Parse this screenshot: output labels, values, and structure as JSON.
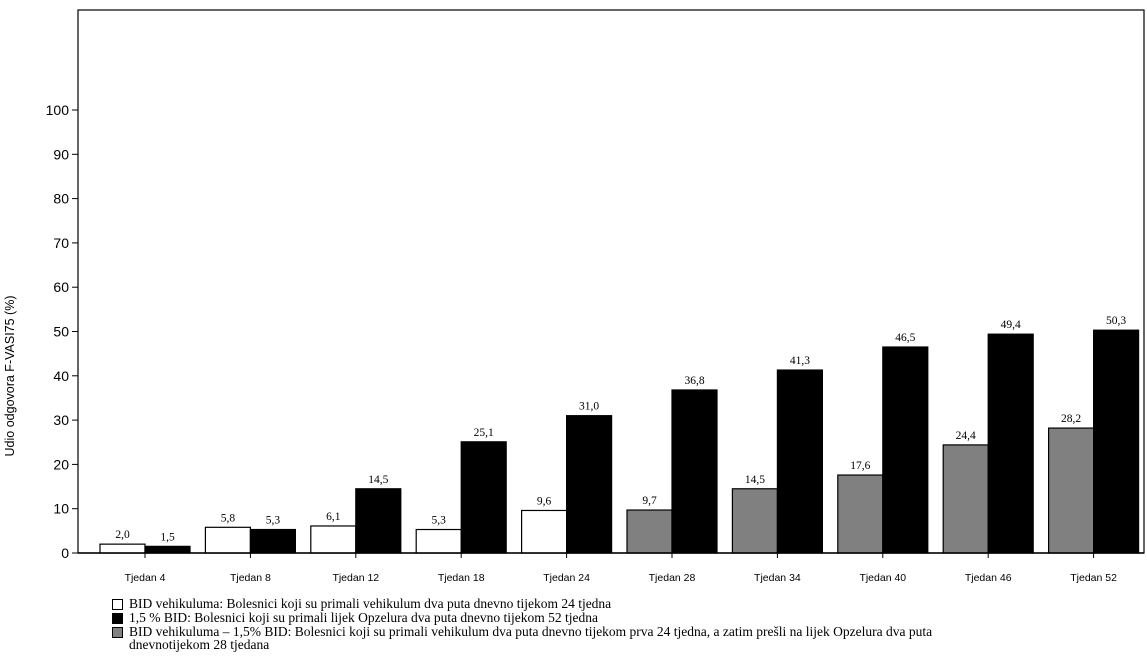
{
  "chart_data": {
    "type": "bar",
    "ylabel": "Udio odgovora F-VASI75 (%)",
    "xlabel": "",
    "ylim": [
      0,
      100
    ],
    "yticks": [
      0,
      10,
      20,
      30,
      40,
      50,
      60,
      70,
      80,
      90,
      100
    ],
    "grid": false,
    "legend_position": "bottom",
    "groups": [
      {
        "label": "Tjedan 4",
        "bars": [
          {
            "series": 0,
            "value": 2.0,
            "value_label": "2,0"
          },
          {
            "series": 1,
            "value": 1.5,
            "value_label": "1,5"
          }
        ]
      },
      {
        "label": "Tjedan 8",
        "bars": [
          {
            "series": 0,
            "value": 5.8,
            "value_label": "5,8"
          },
          {
            "series": 1,
            "value": 5.3,
            "value_label": "5,3"
          }
        ]
      },
      {
        "label": "Tjedan 12",
        "bars": [
          {
            "series": 0,
            "value": 6.1,
            "value_label": "6,1"
          },
          {
            "series": 1,
            "value": 14.5,
            "value_label": "14,5"
          }
        ]
      },
      {
        "label": "Tjedan 18",
        "bars": [
          {
            "series": 0,
            "value": 5.3,
            "value_label": "5,3"
          },
          {
            "series": 1,
            "value": 25.1,
            "value_label": "25,1"
          }
        ]
      },
      {
        "label": "Tjedan 24",
        "bars": [
          {
            "series": 0,
            "value": 9.6,
            "value_label": "9,6"
          },
          {
            "series": 1,
            "value": 31.0,
            "value_label": "31,0"
          }
        ]
      },
      {
        "label": "Tjedan 28",
        "bars": [
          {
            "series": 2,
            "value": 9.7,
            "value_label": "9,7"
          },
          {
            "series": 1,
            "value": 36.8,
            "value_label": "36,8"
          }
        ]
      },
      {
        "label": "Tjedan 34",
        "bars": [
          {
            "series": 2,
            "value": 14.5,
            "value_label": "14,5"
          },
          {
            "series": 1,
            "value": 41.3,
            "value_label": "41,3"
          }
        ]
      },
      {
        "label": "Tjedan 40",
        "bars": [
          {
            "series": 2,
            "value": 17.6,
            "value_label": "17,6"
          },
          {
            "series": 1,
            "value": 46.5,
            "value_label": "46,5"
          }
        ]
      },
      {
        "label": "Tjedan 46",
        "bars": [
          {
            "series": 2,
            "value": 24.4,
            "value_label": "24,4"
          },
          {
            "series": 1,
            "value": 49.4,
            "value_label": "49,4"
          }
        ]
      },
      {
        "label": "Tjedan 52",
        "bars": [
          {
            "series": 2,
            "value": 28.2,
            "value_label": "28,2"
          },
          {
            "series": 1,
            "value": 50.3,
            "value_label": "50,3"
          }
        ]
      }
    ],
    "series": [
      {
        "color": "#ffffff",
        "legend": "BID vehikuluma: Bolesnici koji su primali vehikulum dva puta dnevno tijekom 24 tjedna"
      },
      {
        "color": "#000000",
        "legend": "1,5 % BID: Bolesnici koji su primali lijek Opzelura dva puta dnevno tijekom 52 tjedna"
      },
      {
        "color": "#808080",
        "legend": "BID vehikuluma – 1,5% BID: Bolesnici koji su primali vehikulum dva puta dnevno tijekom prva 24 tjedna, a zatim prešli na lijek Opzelura dva puta dnevnotijekom 28 tjedana"
      }
    ]
  }
}
